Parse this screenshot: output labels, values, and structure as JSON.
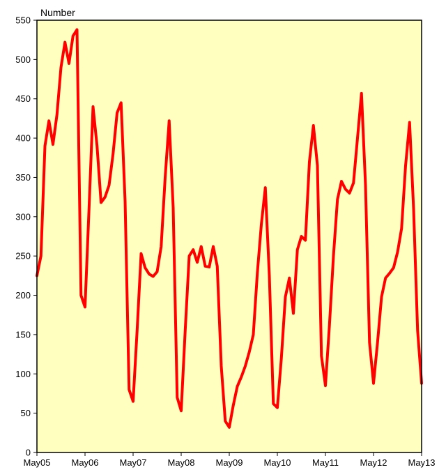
{
  "chart_data": {
    "type": "line",
    "title": "",
    "ylabel": "Number",
    "xlabel": "",
    "ylim": [
      0,
      550
    ],
    "yticks": [
      0,
      50,
      100,
      150,
      200,
      250,
      300,
      350,
      400,
      450,
      500,
      550
    ],
    "xlim": [
      0,
      96
    ],
    "xticks": [
      {
        "pos": 0,
        "label": "May05"
      },
      {
        "pos": 12,
        "label": "May06"
      },
      {
        "pos": 24,
        "label": "May07"
      },
      {
        "pos": 36,
        "label": "May08"
      },
      {
        "pos": 48,
        "label": "May09"
      },
      {
        "pos": 60,
        "label": "May10"
      },
      {
        "pos": 72,
        "label": "May11"
      },
      {
        "pos": 84,
        "label": "May12"
      },
      {
        "pos": 96,
        "label": "May13"
      }
    ],
    "grid": false,
    "colors": {
      "plot_background": "#FFFFC0",
      "line": "#FF0000",
      "frame": "#000000"
    },
    "series": [
      {
        "values": [
          225,
          250,
          390,
          422,
          392,
          430,
          490,
          522,
          495,
          530,
          538,
          200,
          185,
          310,
          440,
          390,
          318,
          325,
          340,
          380,
          432,
          445,
          320,
          80,
          65,
          155,
          253,
          235,
          227,
          224,
          230,
          262,
          350,
          422,
          312,
          70,
          53,
          155,
          250,
          258,
          242,
          262,
          237,
          236,
          262,
          237,
          110,
          40,
          32,
          60,
          84,
          96,
          110,
          128,
          150,
          228,
          290,
          337,
          225,
          62,
          57,
          120,
          198,
          222,
          177,
          258,
          275,
          270,
          370,
          416,
          365,
          123,
          85,
          162,
          250,
          322,
          345,
          335,
          330,
          343,
          400,
          457,
          340,
          140,
          88,
          140,
          198,
          222,
          228,
          235,
          255,
          285,
          365,
          420,
          310,
          155,
          88
        ]
      }
    ]
  }
}
